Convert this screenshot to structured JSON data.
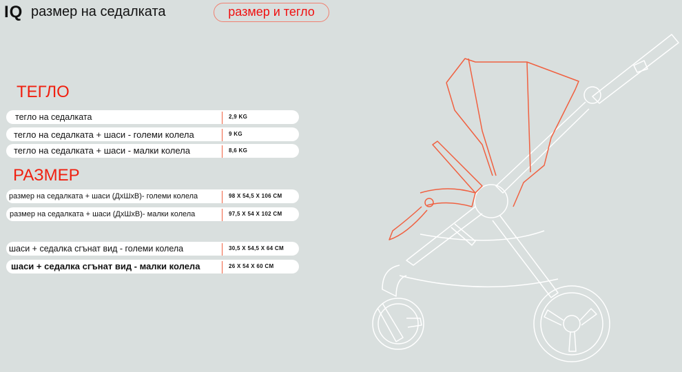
{
  "header": {
    "logo": "IQ",
    "title": "размер на седалката",
    "tab_label": "размер и тегло"
  },
  "weight": {
    "heading": "ТЕГЛО",
    "rows": [
      {
        "label": "тегло на седалката",
        "value": "2,9 KG"
      },
      {
        "label": "тегло на седалката + шаси - големи колела",
        "value": "9 KG"
      },
      {
        "label": "тегло на седалката + шаси - малки колела",
        "value": "8,6 KG"
      }
    ]
  },
  "size": {
    "heading": "РАЗМЕР",
    "rows": [
      {
        "label": "размер на седалката + шаси (ДхШхВ)- големи колела",
        "value": "98 X 54,5 X 106 CM"
      },
      {
        "label": "размер на седалката + шаси (ДхШхВ)- малки колела",
        "value": "97,5 X 54 X 102 CM"
      },
      {
        "label": "шаси + седалка сгънат вид - големи колела",
        "value": "30,5 X 54,5 X 64 CM"
      },
      {
        "label": "шаси + седалка сгънат вид - малки колела",
        "value": "26 X 54 X 60 CM"
      }
    ]
  },
  "colors": {
    "accent": "#f01010",
    "background": "#d9dfde",
    "outline": "#f06040"
  }
}
